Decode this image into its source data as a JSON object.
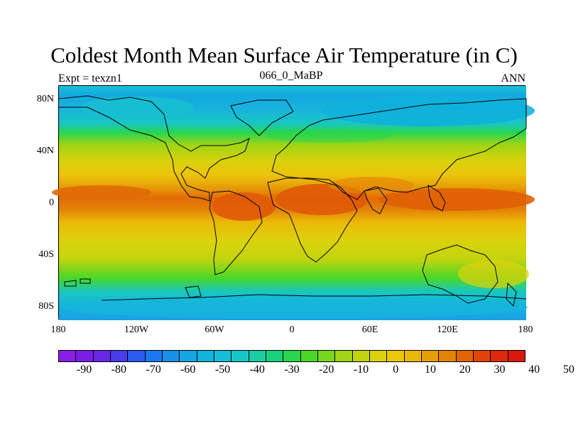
{
  "title": "Coldest Month Mean Surface Air Temperature (in C)",
  "subtitle_left": "Expt = texzn1",
  "subtitle_center": "066_0_MaBP",
  "subtitle_right": "ANN",
  "map": {
    "y_ticks": [
      "80N",
      "40N",
      "0",
      "40S",
      "80S"
    ],
    "x_ticks": [
      "180",
      "120W",
      "60W",
      "0",
      "60E",
      "120E",
      "180"
    ]
  },
  "colorbar": {
    "labels": [
      "-90",
      "-80",
      "-70",
      "-60",
      "-50",
      "-40",
      "-30",
      "-20",
      "-10",
      "0",
      "10",
      "20",
      "30",
      "40",
      "50"
    ],
    "colors": [
      "#8a1ee6",
      "#7a1ee6",
      "#6a28e6",
      "#4a3ce8",
      "#2a5af0",
      "#1a78f0",
      "#1a90e6",
      "#14a6e2",
      "#10b4dc",
      "#14bed8",
      "#18c6c8",
      "#1acea4",
      "#1ad27a",
      "#28d650",
      "#4ad828",
      "#78d61e",
      "#a0d414",
      "#c2d40e",
      "#dcd20c",
      "#ecc80c",
      "#eab808",
      "#e6a006",
      "#e48406",
      "#e26406",
      "#e04408",
      "#de2a0a",
      "#dc180c"
    ]
  }
}
